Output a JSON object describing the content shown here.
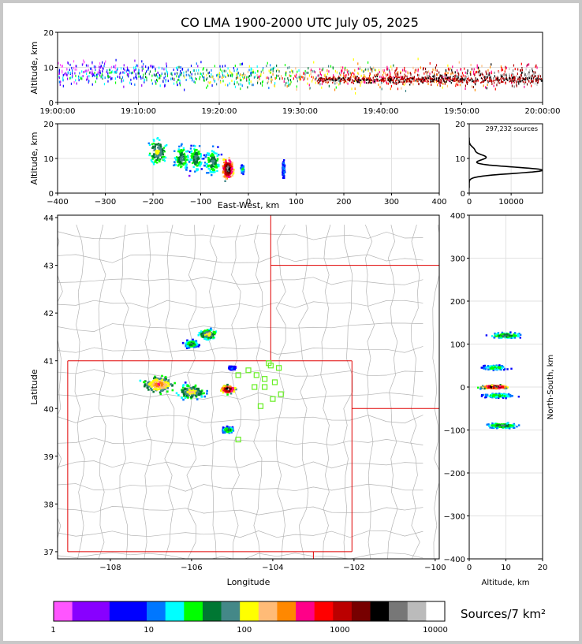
{
  "title": "CO LMA 1900-2000 UTC July 05, 2025",
  "chart_data": [
    {
      "type": "scatter",
      "panel": "altitude-time",
      "ylabel": "Altitude, km",
      "ylim": [
        0,
        20
      ],
      "yticks": [
        "0",
        "10",
        "20"
      ],
      "xticks": [
        "19:00:00",
        "19:10:00",
        "19:20:00",
        "19:30:00",
        "19:40:00",
        "19:50:00",
        "20:00:00"
      ],
      "xlim_minutes": [
        0,
        60
      ],
      "grid": true
    },
    {
      "type": "heatmap",
      "panel": "east-west-altitude",
      "xlabel": "East-West, km",
      "ylabel": "Altitude, km",
      "xlim": [
        -400,
        400
      ],
      "ylim": [
        0,
        20
      ],
      "xticks": [
        "−400",
        "−300",
        "−200",
        "−100",
        "0",
        "100",
        "200",
        "300",
        "400"
      ],
      "yticks": [
        "0",
        "10",
        "20"
      ],
      "clusters": [
        {
          "x": -190,
          "z": 12,
          "spread_x": 18,
          "spread_z": 6,
          "density": 0.55
        },
        {
          "x": -140,
          "z": 10,
          "spread_x": 14,
          "spread_z": 6,
          "density": 0.5
        },
        {
          "x": -110,
          "z": 10,
          "spread_x": 12,
          "spread_z": 6,
          "density": 0.5
        },
        {
          "x": -75,
          "z": 9,
          "spread_x": 14,
          "spread_z": 6,
          "density": 0.5
        },
        {
          "x": -43,
          "z": 7,
          "spread_x": 10,
          "spread_z": 5,
          "density": 1.0
        },
        {
          "x": -12,
          "z": 7,
          "spread_x": 3,
          "spread_z": 2,
          "density": 0.4
        },
        {
          "x": 74,
          "z": 7,
          "spread_x": 2,
          "spread_z": 4,
          "density": 0.35
        }
      ]
    },
    {
      "type": "line",
      "panel": "altitude-histogram",
      "annotation": "297,232 sources",
      "xticks": [
        "0",
        "10000"
      ],
      "yticks": [
        "0",
        "10",
        "20"
      ],
      "xlim": [
        0,
        17500
      ],
      "ylim": [
        0,
        20
      ],
      "x": [
        0,
        200,
        600,
        1500,
        2500,
        3000,
        4000,
        4500,
        4000,
        3500,
        3000,
        5000,
        9000,
        14000,
        17500,
        15000,
        9000,
        4000,
        1500,
        600,
        200,
        0
      ],
      "y": [
        1.5,
        2.5,
        3.5,
        4.5,
        6.5,
        8,
        9.5,
        10.5,
        11,
        10,
        9,
        7.5,
        7,
        6.8,
        6.6,
        6.3,
        5.8,
        5.2,
        4.5,
        3.8,
        3,
        2.5
      ]
    },
    {
      "type": "heatmap",
      "panel": "plan-view-map",
      "xlabel": "Longitude",
      "ylabel": "Latitude",
      "xlim": [
        -109.3,
        -99.9
      ],
      "ylim": [
        36.85,
        44.05
      ],
      "xticks": [
        "−108",
        "−106",
        "−104",
        "−102",
        "−100"
      ],
      "yticks": [
        "37",
        "38",
        "39",
        "40",
        "41",
        "42",
        "43",
        "44"
      ],
      "clusters": [
        {
          "lon": -105.1,
          "lat": 40.4,
          "spread": 0.15,
          "density": 1.0
        },
        {
          "lon": -106.8,
          "lat": 40.5,
          "spread": 0.35,
          "density": 0.7
        },
        {
          "lon": -106.0,
          "lat": 40.35,
          "spread": 0.3,
          "density": 0.6
        },
        {
          "lon": -105.6,
          "lat": 41.55,
          "spread": 0.2,
          "density": 0.6
        },
        {
          "lon": -106.0,
          "lat": 41.35,
          "spread": 0.15,
          "density": 0.5
        },
        {
          "lon": -105.1,
          "lat": 39.55,
          "spread": 0.12,
          "density": 0.5
        },
        {
          "lon": -105.0,
          "lat": 40.85,
          "spread": 0.08,
          "density": 0.3
        }
      ],
      "stations": [
        [
          -104.1,
          40.95
        ],
        [
          -103.85,
          40.85
        ],
        [
          -104.05,
          40.9
        ],
        [
          -104.6,
          40.8
        ],
        [
          -104.4,
          40.7
        ],
        [
          -104.85,
          40.7
        ],
        [
          -104.2,
          40.62
        ],
        [
          -103.95,
          40.55
        ],
        [
          -104.45,
          40.45
        ],
        [
          -104.2,
          40.45
        ],
        [
          -104.0,
          40.2
        ],
        [
          -103.8,
          40.3
        ],
        [
          -104.3,
          40.05
        ],
        [
          -104.85,
          39.35
        ]
      ]
    },
    {
      "type": "heatmap",
      "panel": "north-south-altitude",
      "xlabel": "Altitude, km",
      "ylabel": "North-South, km",
      "xlim": [
        0,
        20
      ],
      "ylim": [
        -400,
        400
      ],
      "xticks": [
        "0",
        "10",
        "20"
      ],
      "yticks": [
        "400",
        "300",
        "200",
        "100",
        "0",
        "−100",
        "−200",
        "−300",
        "−400"
      ],
      "clusters": [
        {
          "ns": 0,
          "z": 7,
          "spread_ns": 6,
          "spread_z": 3,
          "density": 1.0
        },
        {
          "ns": 120,
          "z": 10,
          "spread_ns": 10,
          "spread_z": 4,
          "density": 0.5
        },
        {
          "ns": 45,
          "z": 7,
          "spread_ns": 8,
          "spread_z": 3,
          "density": 0.45
        },
        {
          "ns": -90,
          "z": 9,
          "spread_ns": 10,
          "spread_z": 4,
          "density": 0.5
        },
        {
          "ns": -20,
          "z": 8,
          "spread_ns": 8,
          "spread_z": 4,
          "density": 0.45
        }
      ]
    }
  ],
  "colorbar": {
    "label": "Sources/7 km²",
    "ticks": [
      "1",
      "10",
      "100",
      "1000",
      "10000"
    ],
    "colors": [
      "#ff55ff",
      "#8800ff",
      "#8800ff",
      "#0000ff",
      "#0000ff",
      "#0077ff",
      "#00ffff",
      "#00ff00",
      "#007733",
      "#448888",
      "#ffff00",
      "#ffbb77",
      "#ff8800",
      "#ff0088",
      "#ff0000",
      "#bb0000",
      "#770000",
      "#000000",
      "#777777",
      "#bbbbbb",
      "#ffffff"
    ]
  }
}
